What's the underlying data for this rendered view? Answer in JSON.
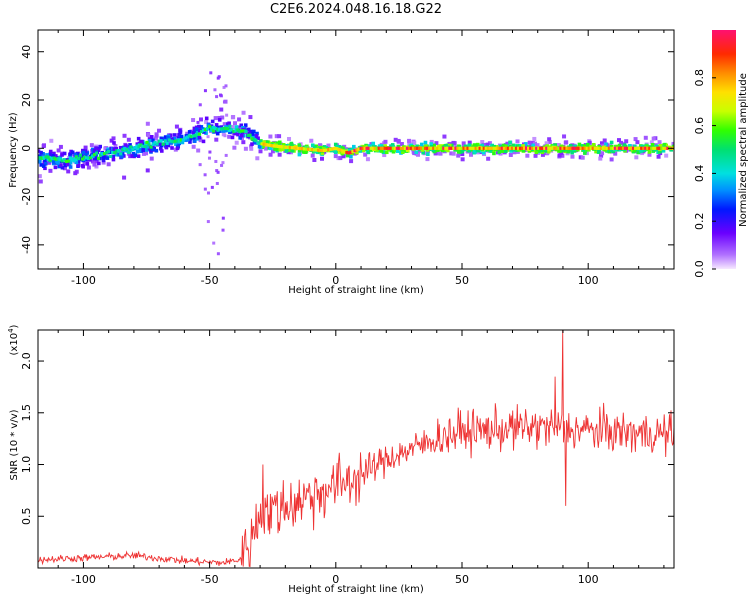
{
  "title": "C2E6.2024.048.16.18.G22",
  "chart_data": [
    {
      "type": "heatmap",
      "xlabel": "Height of straight line (km)",
      "ylabel": "Frequency (Hz)",
      "xlim": [
        -118,
        134
      ],
      "ylim": [
        -50,
        49
      ],
      "x_ticks": [
        -100,
        -50,
        0,
        50,
        100
      ],
      "y_ticks": [
        -40,
        -20,
        0,
        20,
        40
      ],
      "x_tick_labels": [
        "-100",
        "-50",
        "0",
        "50",
        "100"
      ],
      "y_tick_labels": [
        "-40",
        "-20",
        "0",
        "20",
        "40"
      ],
      "ridge": {
        "x": [
          -118,
          -105,
          -90,
          -75,
          -60,
          -50,
          -40,
          -35,
          -30,
          -25,
          -15,
          -5,
          0,
          5,
          10,
          30,
          50,
          70,
          90,
          110,
          134
        ],
        "y": [
          -4,
          -5,
          -2,
          1,
          4,
          8,
          8,
          6,
          2,
          1,
          0,
          -1,
          0,
          -2,
          0,
          0,
          0,
          0,
          0,
          0,
          0
        ]
      },
      "colorbar": {
        "label": "Normalized spectral amplitude",
        "range": [
          0,
          1
        ],
        "ticks": [
          0.0,
          0.2,
          0.4,
          0.6,
          0.8
        ],
        "tick_labels": [
          "0.0",
          "0.2",
          "0.4",
          "0.6",
          "0.8"
        ]
      }
    },
    {
      "type": "line",
      "xlabel": "Height of straight line (km)",
      "ylabel": "SNR (10 * v/v)",
      "y_exponent_label": "(x10",
      "y_exponent_power": "4",
      "y_exponent_close": ")",
      "xlim": [
        -118,
        134
      ],
      "ylim": [
        0,
        2.3
      ],
      "x_ticks": [
        -100,
        -50,
        0,
        50,
        100
      ],
      "y_ticks": [
        0.5,
        1.0,
        1.5,
        2.0
      ],
      "x_tick_labels": [
        "-100",
        "-50",
        "0",
        "50",
        "100"
      ],
      "y_tick_labels": [
        "0.5",
        "1.0",
        "1.5",
        "2.0"
      ],
      "color": "#ee3333",
      "envelope": {
        "x": [
          -118,
          -80,
          -60,
          -45,
          -38,
          -33,
          -30,
          -25,
          -20,
          -10,
          0,
          10,
          20,
          30,
          40,
          50,
          60,
          70,
          80,
          90,
          100,
          110,
          120,
          134
        ],
        "y": [
          0.08,
          0.12,
          0.07,
          0.05,
          0.08,
          0.3,
          0.55,
          0.55,
          0.6,
          0.7,
          0.8,
          0.9,
          1.05,
          1.15,
          1.25,
          1.32,
          1.33,
          1.35,
          1.36,
          1.35,
          1.33,
          1.32,
          1.3,
          1.3
        ]
      },
      "spikes": [
        {
          "x": 90,
          "y": 2.3
        },
        {
          "x": 87,
          "y": 1.85
        },
        {
          "x": 91,
          "y": 0.6
        },
        {
          "x": -29,
          "y": 1.0
        }
      ]
    }
  ]
}
